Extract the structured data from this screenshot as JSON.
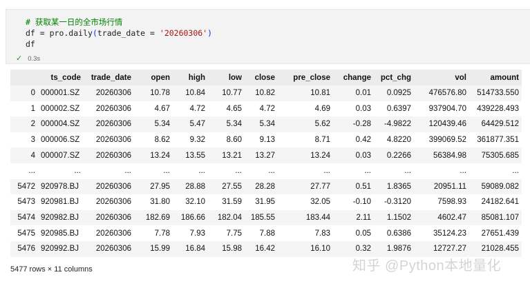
{
  "cell": {
    "code_lines": {
      "comment": "# 获取某一日的全市场行情",
      "line2_prefix": "df = pro.daily",
      "line2_open": "(",
      "line2_arg": "trade_date = ",
      "line2_str": "'20260306'",
      "line2_close": ")",
      "line3": "df"
    },
    "status_icon": "check-icon",
    "exec_time": "0.3s"
  },
  "table": {
    "columns": [
      "",
      "ts_code",
      "trade_date",
      "open",
      "high",
      "low",
      "close",
      "pre_close",
      "change",
      "pct_chg",
      "vol",
      "amount"
    ],
    "rows": [
      [
        "0",
        "000001.SZ",
        "20260306",
        "10.78",
        "10.84",
        "10.77",
        "10.82",
        "10.81",
        "0.01",
        "0.0925",
        "476576.80",
        "514733.550"
      ],
      [
        "1",
        "000002.SZ",
        "20260306",
        "4.67",
        "4.72",
        "4.65",
        "4.72",
        "4.69",
        "0.03",
        "0.6397",
        "937904.70",
        "439228.493"
      ],
      [
        "2",
        "000004.SZ",
        "20260306",
        "5.34",
        "5.47",
        "5.34",
        "5.34",
        "5.62",
        "-0.28",
        "-4.9822",
        "120439.46",
        "64429.512"
      ],
      [
        "3",
        "000006.SZ",
        "20260306",
        "8.62",
        "9.32",
        "8.60",
        "9.13",
        "8.71",
        "0.42",
        "4.8220",
        "399069.52",
        "361877.351"
      ],
      [
        "4",
        "000007.SZ",
        "20260306",
        "13.24",
        "13.55",
        "13.21",
        "13.27",
        "13.24",
        "0.03",
        "0.2266",
        "56384.98",
        "75305.685"
      ],
      [
        "...",
        "...",
        "...",
        "...",
        "...",
        "...",
        "...",
        "...",
        "...",
        "...",
        "...",
        "..."
      ],
      [
        "5472",
        "920978.BJ",
        "20260306",
        "27.95",
        "28.88",
        "27.55",
        "28.28",
        "27.77",
        "0.51",
        "1.8365",
        "20951.11",
        "59089.082"
      ],
      [
        "5473",
        "920981.BJ",
        "20260306",
        "31.80",
        "32.10",
        "31.59",
        "31.95",
        "32.05",
        "-0.10",
        "-0.3120",
        "7598.93",
        "24182.641"
      ],
      [
        "5474",
        "920982.BJ",
        "20260306",
        "182.69",
        "186.66",
        "182.04",
        "185.55",
        "183.44",
        "2.11",
        "1.1502",
        "4602.47",
        "85081.107"
      ],
      [
        "5475",
        "920985.BJ",
        "20260306",
        "7.78",
        "7.93",
        "7.75",
        "7.88",
        "7.83",
        "0.05",
        "0.6386",
        "35124.23",
        "27651.439"
      ],
      [
        "5476",
        "920992.BJ",
        "20260306",
        "15.99",
        "16.84",
        "15.98",
        "16.42",
        "16.10",
        "0.32",
        "1.9876",
        "12727.27",
        "21028.455"
      ]
    ]
  },
  "footer": "5477 rows × 11 columns",
  "watermark": "知乎 @Python本地量化"
}
